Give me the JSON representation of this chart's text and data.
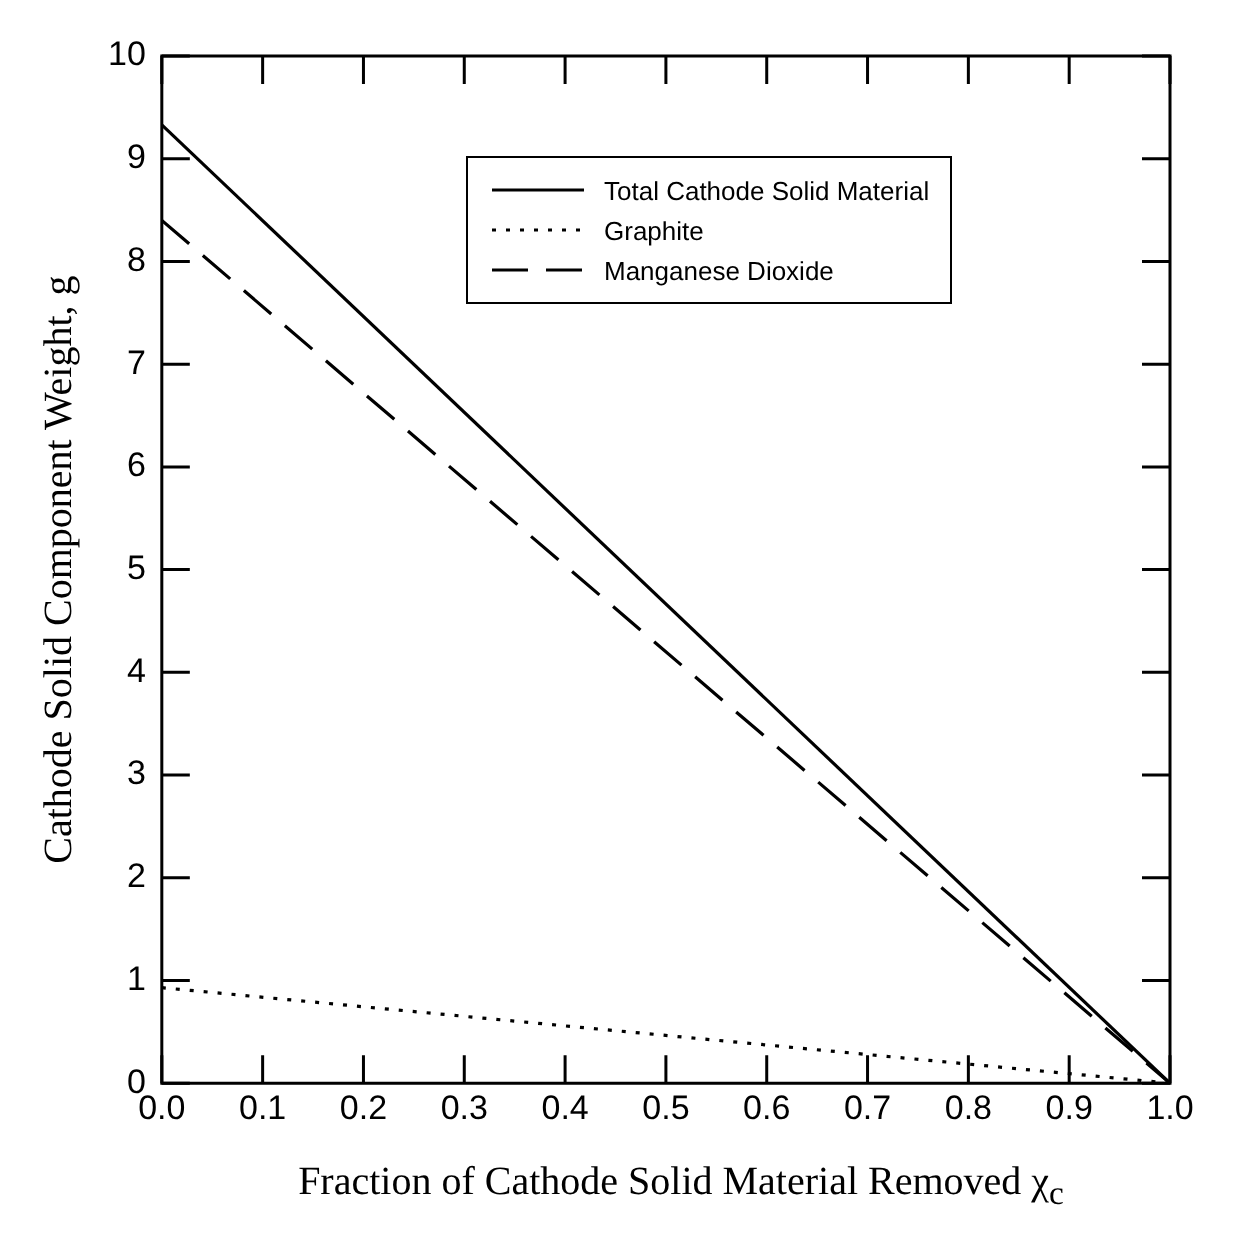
{
  "chart_data": {
    "type": "line",
    "xlabel": "Fraction of Cathode Solid Material Removed χ$_{c}$",
    "ylabel": "Cathode Solid Component Weight, g",
    "x": [
      0,
      1
    ],
    "series": [
      {
        "name": "Total Cathode Solid Material",
        "color": "#000000",
        "values": [
          9.33,
          0
        ],
        "line_style": "solid"
      },
      {
        "name": "Graphite",
        "color": "#000000",
        "values": [
          0.93,
          0
        ],
        "line_style": "dotted"
      },
      {
        "name": "Manganese Dioxide",
        "color": "#000000",
        "values": [
          8.4,
          0
        ],
        "line_style": "dashed"
      }
    ],
    "xlim": [
      0,
      1
    ],
    "xticks": [
      {
        "value": 0,
        "label": "0.0"
      },
      0.1,
      0.2,
      0.3,
      0.4,
      0.5,
      0.6,
      0.7,
      0.8,
      0.9,
      {
        "value": 1,
        "label": "1.0"
      }
    ],
    "ylim": [
      0,
      10
    ],
    "yticks": [
      0,
      1,
      2,
      3,
      4,
      5,
      6,
      7,
      8,
      9,
      10
    ],
    "grid": false,
    "legend": "top right",
    "marker": "none"
  }
}
